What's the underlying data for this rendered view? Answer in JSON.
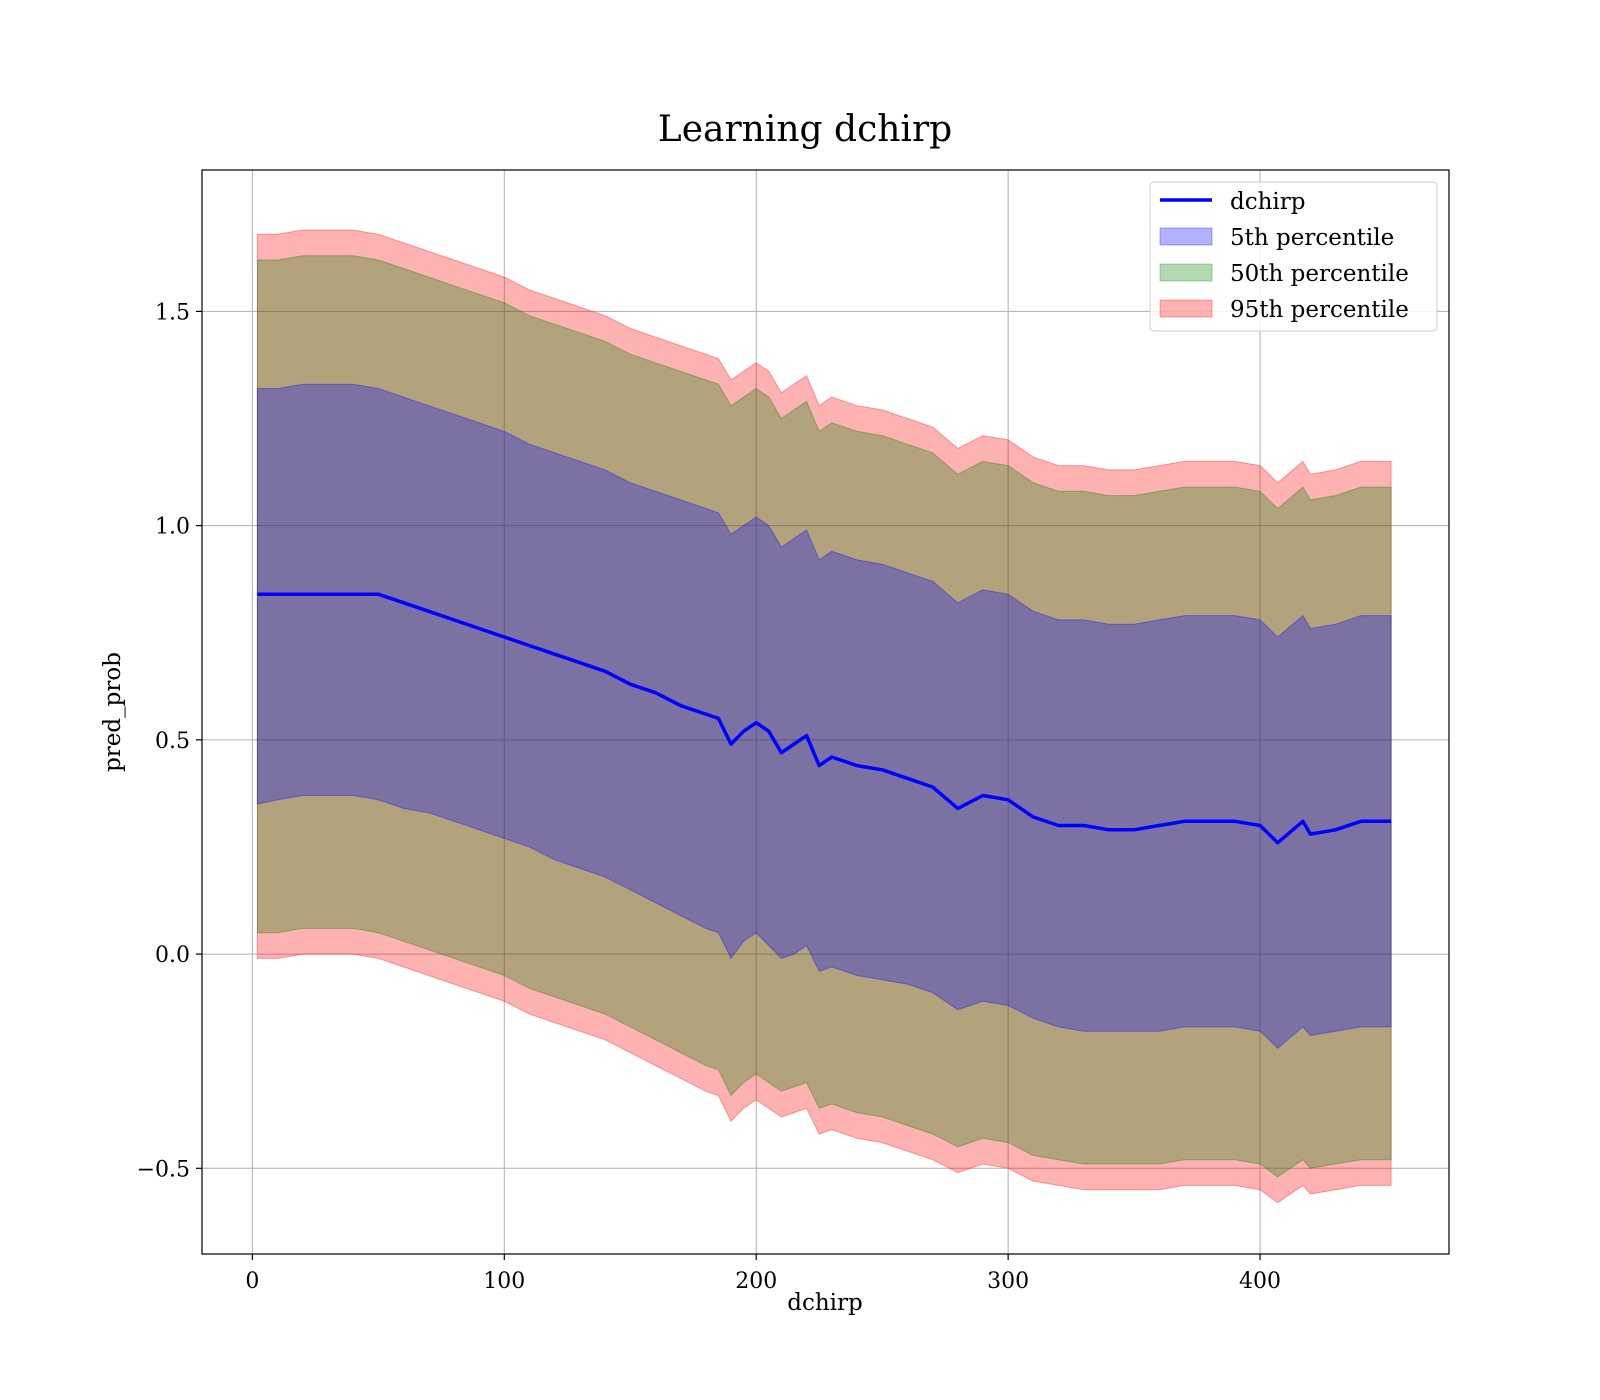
{
  "chart_data": {
    "type": "area",
    "title": "Learning dchirp",
    "xlabel": "dchirp",
    "ylabel": "pred_prob",
    "xlim": [
      -20,
      475
    ],
    "ylim": [
      -0.7,
      1.83
    ],
    "xticks": [
      0,
      100,
      200,
      300,
      400
    ],
    "yticks": [
      -0.5,
      0.0,
      0.5,
      1.0,
      1.5
    ],
    "ytick_labels": [
      "−0.5",
      "0.0",
      "0.5",
      "1.0",
      "1.5"
    ],
    "grid": true,
    "legend_position": "top-right",
    "x": [
      2,
      10,
      20,
      30,
      40,
      50,
      60,
      70,
      80,
      90,
      100,
      110,
      120,
      130,
      140,
      150,
      160,
      170,
      180,
      185,
      190,
      195,
      200,
      205,
      210,
      215,
      220,
      225,
      230,
      240,
      250,
      260,
      270,
      280,
      290,
      300,
      310,
      320,
      330,
      340,
      350,
      360,
      370,
      380,
      390,
      400,
      407,
      417,
      420,
      430,
      440,
      452
    ],
    "center": [
      0.84,
      0.84,
      0.84,
      0.84,
      0.84,
      0.84,
      0.82,
      0.8,
      0.78,
      0.76,
      0.74,
      0.72,
      0.7,
      0.68,
      0.66,
      0.63,
      0.61,
      0.58,
      0.56,
      0.55,
      0.49,
      0.52,
      0.54,
      0.52,
      0.47,
      0.49,
      0.51,
      0.44,
      0.46,
      0.44,
      0.43,
      0.41,
      0.39,
      0.34,
      0.37,
      0.36,
      0.32,
      0.3,
      0.3,
      0.29,
      0.29,
      0.3,
      0.31,
      0.31,
      0.31,
      0.3,
      0.26,
      0.31,
      0.28,
      0.29,
      0.31,
      0.31
    ],
    "series": [
      {
        "name": "5th percentile",
        "color": "#0000ff",
        "opacity": 0.3,
        "lower": [
          0.35,
          0.36,
          0.37,
          0.37,
          0.37,
          0.36,
          0.34,
          0.33,
          0.31,
          0.29,
          0.27,
          0.25,
          0.22,
          0.2,
          0.18,
          0.15,
          0.12,
          0.09,
          0.06,
          0.05,
          -0.01,
          0.03,
          0.05,
          0.02,
          -0.01,
          0.0,
          0.02,
          -0.04,
          -0.03,
          -0.05,
          -0.06,
          -0.07,
          -0.09,
          -0.13,
          -0.11,
          -0.12,
          -0.15,
          -0.17,
          -0.18,
          -0.18,
          -0.18,
          -0.18,
          -0.17,
          -0.17,
          -0.17,
          -0.18,
          -0.22,
          -0.17,
          -0.19,
          -0.18,
          -0.17,
          -0.17
        ],
        "upper": [
          1.32,
          1.32,
          1.33,
          1.33,
          1.33,
          1.32,
          1.3,
          1.28,
          1.26,
          1.24,
          1.22,
          1.19,
          1.17,
          1.15,
          1.13,
          1.1,
          1.08,
          1.06,
          1.04,
          1.03,
          0.98,
          1.0,
          1.02,
          1.0,
          0.95,
          0.97,
          0.99,
          0.92,
          0.94,
          0.92,
          0.91,
          0.89,
          0.87,
          0.82,
          0.85,
          0.84,
          0.8,
          0.78,
          0.78,
          0.77,
          0.77,
          0.78,
          0.79,
          0.79,
          0.79,
          0.78,
          0.74,
          0.79,
          0.76,
          0.77,
          0.79,
          0.79
        ]
      },
      {
        "name": "50th percentile",
        "color": "#008000",
        "opacity": 0.3,
        "lower": [
          0.05,
          0.05,
          0.06,
          0.06,
          0.06,
          0.05,
          0.03,
          0.01,
          -0.01,
          -0.03,
          -0.05,
          -0.08,
          -0.1,
          -0.12,
          -0.14,
          -0.17,
          -0.2,
          -0.23,
          -0.26,
          -0.27,
          -0.33,
          -0.3,
          -0.28,
          -0.3,
          -0.32,
          -0.31,
          -0.3,
          -0.36,
          -0.35,
          -0.37,
          -0.38,
          -0.4,
          -0.42,
          -0.45,
          -0.43,
          -0.44,
          -0.47,
          -0.48,
          -0.49,
          -0.49,
          -0.49,
          -0.49,
          -0.48,
          -0.48,
          -0.48,
          -0.49,
          -0.52,
          -0.48,
          -0.5,
          -0.49,
          -0.48,
          -0.48
        ],
        "upper": [
          1.62,
          1.62,
          1.63,
          1.63,
          1.63,
          1.62,
          1.6,
          1.58,
          1.56,
          1.54,
          1.52,
          1.49,
          1.47,
          1.45,
          1.43,
          1.4,
          1.38,
          1.36,
          1.34,
          1.33,
          1.28,
          1.3,
          1.32,
          1.3,
          1.25,
          1.27,
          1.29,
          1.22,
          1.24,
          1.22,
          1.21,
          1.19,
          1.17,
          1.12,
          1.15,
          1.14,
          1.1,
          1.08,
          1.08,
          1.07,
          1.07,
          1.08,
          1.09,
          1.09,
          1.09,
          1.08,
          1.04,
          1.09,
          1.06,
          1.07,
          1.09,
          1.09
        ]
      },
      {
        "name": "95th percentile",
        "color": "#ff0000",
        "opacity": 0.3,
        "lower": [
          -0.01,
          -0.01,
          0.0,
          0.0,
          0.0,
          -0.01,
          -0.03,
          -0.05,
          -0.07,
          -0.09,
          -0.11,
          -0.14,
          -0.16,
          -0.18,
          -0.2,
          -0.23,
          -0.26,
          -0.29,
          -0.32,
          -0.33,
          -0.39,
          -0.36,
          -0.34,
          -0.36,
          -0.38,
          -0.37,
          -0.36,
          -0.42,
          -0.41,
          -0.43,
          -0.44,
          -0.46,
          -0.48,
          -0.51,
          -0.49,
          -0.5,
          -0.53,
          -0.54,
          -0.55,
          -0.55,
          -0.55,
          -0.55,
          -0.54,
          -0.54,
          -0.54,
          -0.55,
          -0.58,
          -0.54,
          -0.56,
          -0.55,
          -0.54,
          -0.54
        ],
        "upper": [
          1.68,
          1.68,
          1.69,
          1.69,
          1.69,
          1.68,
          1.66,
          1.64,
          1.62,
          1.6,
          1.58,
          1.55,
          1.53,
          1.51,
          1.49,
          1.46,
          1.44,
          1.42,
          1.4,
          1.39,
          1.34,
          1.36,
          1.38,
          1.36,
          1.31,
          1.33,
          1.35,
          1.28,
          1.3,
          1.28,
          1.27,
          1.25,
          1.23,
          1.18,
          1.21,
          1.2,
          1.16,
          1.14,
          1.14,
          1.13,
          1.13,
          1.14,
          1.15,
          1.15,
          1.15,
          1.14,
          1.1,
          1.15,
          1.12,
          1.13,
          1.15,
          1.15
        ]
      }
    ],
    "line": {
      "name": "dchirp",
      "color": "#0000ff"
    }
  }
}
